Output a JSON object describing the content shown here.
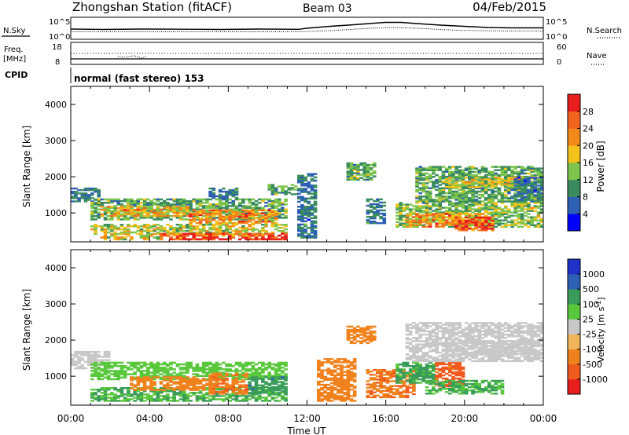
{
  "header": {
    "station": "Zhongshan Station (fitACF)",
    "beam": "Beam 03",
    "date": "04/Feb/2015"
  },
  "summary_panels": {
    "nsky_label": "N.Sky",
    "nsearch_label": "N.Search",
    "freq_label_line1": "Freq.",
    "freq_label_line2": "[MHz]",
    "nave_label": "Nave",
    "cpid_label": "CPID",
    "cpid_text": "normal (fast stereo) 153",
    "noise_left_ticks": [
      "10^5",
      "10^0"
    ],
    "noise_right_ticks": [
      "10^5",
      "10^0"
    ],
    "freq_left_ticks": [
      "18",
      "8"
    ],
    "nave_right_ticks": [
      "60",
      "0"
    ]
  },
  "colors": {
    "power_scale": [
      "#0000ff",
      "#2d5fb4",
      "#3a8c5f",
      "#7cc44b",
      "#f2c11a",
      "#f28a1a",
      "#f0641e",
      "#e81e1e"
    ],
    "velocity_scale": [
      "#e81e1e",
      "#f05a1e",
      "#f0821e",
      "#f0b45a",
      "#c8c8c8",
      "#5ac83c",
      "#3a9c5a",
      "#2d5fb4",
      "#1e32c8"
    ]
  },
  "chart_data": [
    {
      "type": "heatmap",
      "title": "",
      "xlabel": "Time UT",
      "ylabel": "Slant Range [km]",
      "x_ticks": [
        "00:00",
        "04:00",
        "08:00",
        "12:00",
        "16:00",
        "20:00",
        "00:00"
      ],
      "y_ticks": [
        "1000",
        "2000",
        "3000",
        "4000"
      ],
      "ylim": [
        200,
        4500
      ],
      "colorbar_label": "Power [dB]",
      "colorbar_ticks": [
        "4",
        "8",
        "12",
        "16",
        "20",
        "24",
        "28"
      ],
      "colorbar_range": [
        0,
        32
      ],
      "regions": [
        {
          "t0": 0.0,
          "t1": 1.5,
          "r0": 1300,
          "r1": 1700,
          "value": 8
        },
        {
          "t0": 1.0,
          "t1": 11.0,
          "r0": 800,
          "r1": 1400,
          "value": 12
        },
        {
          "t0": 1.5,
          "t1": 6.0,
          "r0": 900,
          "r1": 1200,
          "value": 20
        },
        {
          "t0": 6.0,
          "t1": 10.5,
          "r0": 700,
          "r1": 1100,
          "value": 22
        },
        {
          "t0": 1.0,
          "t1": 11.0,
          "r0": 400,
          "r1": 700,
          "value": 16
        },
        {
          "t0": 4.5,
          "t1": 11.0,
          "r0": 250,
          "r1": 450,
          "value": 28
        },
        {
          "t0": 1.5,
          "t1": 4.5,
          "r0": 250,
          "r1": 400,
          "value": 18
        },
        {
          "t0": 7.0,
          "t1": 8.5,
          "r0": 1400,
          "r1": 1700,
          "value": 8
        },
        {
          "t0": 10.0,
          "t1": 11.5,
          "r0": 1500,
          "r1": 1800,
          "value": 12
        },
        {
          "t0": 11.5,
          "t1": 12.5,
          "r0": 300,
          "r1": 2100,
          "value": 8
        },
        {
          "t0": 14.0,
          "t1": 15.5,
          "r0": 1900,
          "r1": 2400,
          "value": 12
        },
        {
          "t0": 15.0,
          "t1": 16.0,
          "r0": 700,
          "r1": 1400,
          "value": 8
        },
        {
          "t0": 16.5,
          "t1": 24.0,
          "r0": 600,
          "r1": 1300,
          "value": 14
        },
        {
          "t0": 17.0,
          "t1": 21.0,
          "r0": 600,
          "r1": 1000,
          "value": 22
        },
        {
          "t0": 19.5,
          "t1": 21.5,
          "r0": 500,
          "r1": 900,
          "value": 28
        },
        {
          "t0": 17.5,
          "t1": 24.0,
          "r0": 1300,
          "r1": 2300,
          "value": 12
        },
        {
          "t0": 19.0,
          "t1": 23.0,
          "r0": 1700,
          "r1": 2000,
          "value": 16
        },
        {
          "t0": 22.5,
          "t1": 24.0,
          "r0": 1300,
          "r1": 2000,
          "value": 8
        }
      ]
    },
    {
      "type": "heatmap",
      "title": "",
      "xlabel": "Time UT",
      "ylabel": "Slant Range [km]",
      "x_ticks": [
        "00:00",
        "04:00",
        "08:00",
        "12:00",
        "16:00",
        "20:00",
        "00:00"
      ],
      "y_ticks": [
        "1000",
        "2000",
        "3000",
        "4000"
      ],
      "ylim": [
        200,
        4500
      ],
      "colorbar_label": "Velocity [m s^-1]",
      "colorbar_ticks": [
        "1000",
        "500",
        "100",
        "25",
        "-25",
        "-100",
        "-500",
        "-1000"
      ],
      "colorbar_range": [
        -1250,
        1250
      ],
      "regions": [
        {
          "t0": 0.0,
          "t1": 2.0,
          "r0": 1200,
          "r1": 1700,
          "value": 0
        },
        {
          "t0": 1.0,
          "t1": 11.0,
          "r0": 900,
          "r1": 1400,
          "value": 60
        },
        {
          "t0": 1.0,
          "t1": 11.0,
          "r0": 300,
          "r1": 700,
          "value": 100
        },
        {
          "t0": 3.0,
          "t1": 7.0,
          "r0": 600,
          "r1": 1000,
          "value": -200
        },
        {
          "t0": 7.0,
          "t1": 9.0,
          "r0": 500,
          "r1": 1100,
          "value": -450
        },
        {
          "t0": 9.0,
          "t1": 11.0,
          "r0": 500,
          "r1": 1000,
          "value": 400
        },
        {
          "t0": 12.5,
          "t1": 14.5,
          "r0": 300,
          "r1": 1500,
          "value": -350
        },
        {
          "t0": 15.0,
          "t1": 17.5,
          "r0": 400,
          "r1": 1200,
          "value": -450
        },
        {
          "t0": 16.5,
          "t1": 18.5,
          "r0": 800,
          "r1": 1400,
          "value": 120
        },
        {
          "t0": 18.5,
          "t1": 20.0,
          "r0": 700,
          "r1": 1400,
          "value": -700
        },
        {
          "t0": 18.0,
          "t1": 22.0,
          "r0": 500,
          "r1": 900,
          "value": 100
        },
        {
          "t0": 17.0,
          "t1": 24.0,
          "r0": 1400,
          "r1": 2500,
          "value": 0
        },
        {
          "t0": 19.0,
          "t1": 23.5,
          "r0": 1600,
          "r1": 2000,
          "value": 0
        },
        {
          "t0": 14.0,
          "t1": 15.5,
          "r0": 1900,
          "r1": 2400,
          "value": -150
        }
      ]
    }
  ]
}
